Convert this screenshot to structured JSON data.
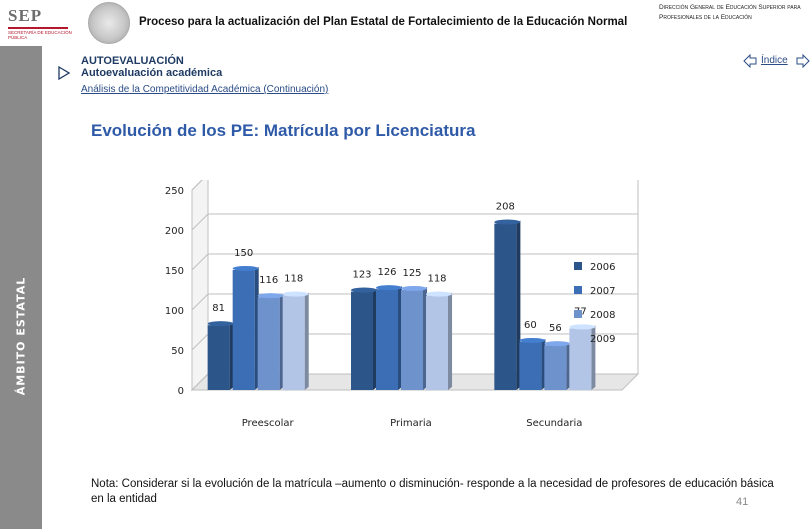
{
  "header": {
    "logo_text": "SEP",
    "logo_subtitle": "SECRETARÍA DE EDUCACIÓN PÚBLICA",
    "title": "Proceso para la actualización del Plan Estatal de Fortalecimiento de la Educación Normal",
    "dept": "Dirección General de Educación Superior para Profesionales de la Educación"
  },
  "sidebar": {
    "label": "ÁMBITO ESTATAL"
  },
  "section": {
    "title": "AUTOEVALUACIÓN",
    "subtitle": "Autoevaluación académica",
    "breadcrumb": "Análisis de la Competitividad Académica (Continuación)"
  },
  "nav": {
    "index_label": "Índice"
  },
  "page_title": "Evolución de los PE: Matrícula por Licenciatura",
  "chart_data": {
    "type": "bar",
    "categories": [
      "Preescolar",
      "Primaria",
      "Secundaria"
    ],
    "series": [
      {
        "name": "2006",
        "values": [
          81,
          123,
          208
        ],
        "color": "#2c5589"
      },
      {
        "name": "2007",
        "values": [
          150,
          126,
          60
        ],
        "color": "#3b6eb4"
      },
      {
        "name": "2008",
        "values": [
          116,
          125,
          56
        ],
        "color": "#6e92cc"
      },
      {
        "name": "2009",
        "values": [
          118,
          118,
          77
        ],
        "color": "#b3c5e6"
      }
    ],
    "ylim": [
      0,
      250
    ],
    "yticks": [
      0,
      50,
      100,
      150,
      200,
      250
    ],
    "grid": true,
    "legend": "right"
  },
  "note": "Nota: Considerar si la evolución de la matrícula –aumento o disminución- responde a la necesidad de profesores de educación básica en la entidad",
  "page_number": "41"
}
